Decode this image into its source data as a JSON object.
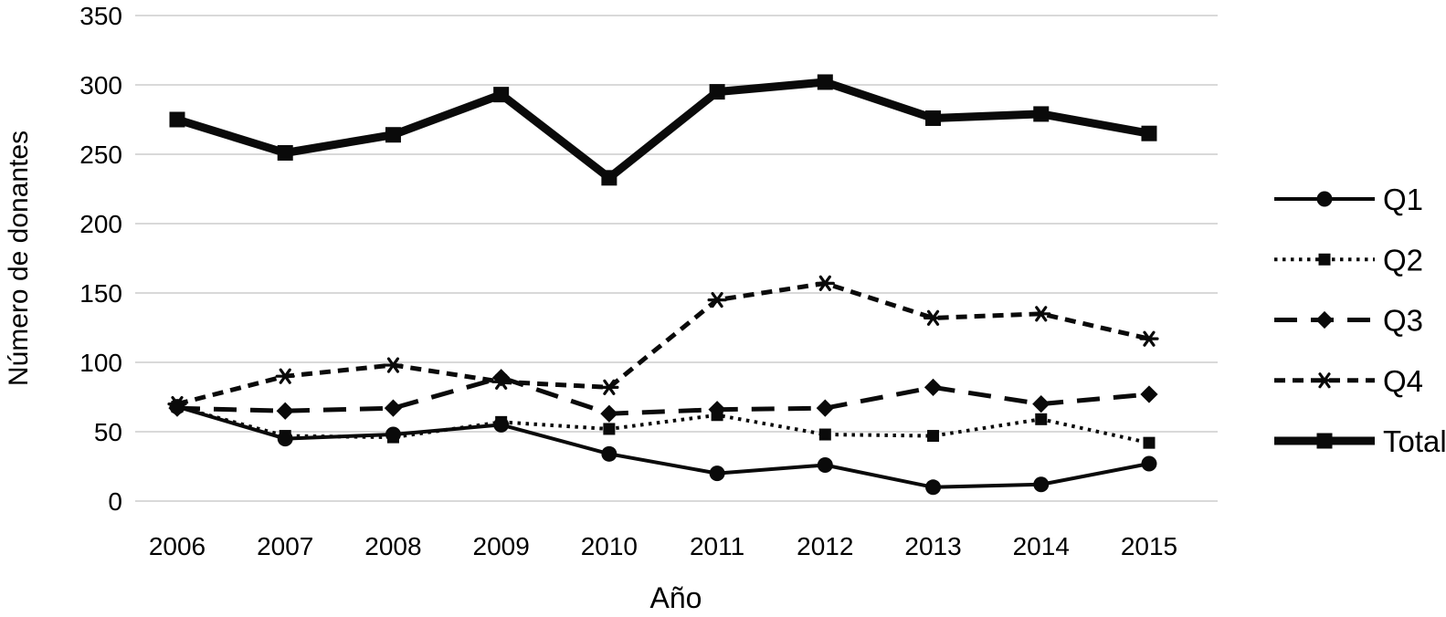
{
  "figure": {
    "background": "#ffffff"
  },
  "chart_data": {
    "type": "line",
    "title": "",
    "xlabel": "Año",
    "ylabel": "Número de donantes",
    "categories": [
      "2006",
      "2007",
      "2008",
      "2009",
      "2010",
      "2011",
      "2012",
      "2013",
      "2014",
      "2015"
    ],
    "ylim": [
      0,
      350
    ],
    "yticks": [
      350,
      300,
      250,
      200,
      150,
      100,
      50,
      0
    ],
    "grid": "horizontal",
    "legend_position": "right",
    "series": [
      {
        "name": "Q1",
        "values": [
          68,
          45,
          48,
          55,
          34,
          20,
          26,
          10,
          12,
          27
        ],
        "line_style": "solid",
        "line_weight": "thin",
        "marker": "circle"
      },
      {
        "name": "Q2",
        "values": [
          68,
          47,
          46,
          57,
          52,
          62,
          48,
          47,
          59,
          42
        ],
        "line_style": "dotted",
        "line_weight": "thin",
        "marker": "small-square"
      },
      {
        "name": "Q3",
        "values": [
          67,
          65,
          67,
          89,
          63,
          66,
          67,
          82,
          70,
          77
        ],
        "line_style": "long-dash",
        "line_weight": "medium",
        "marker": "diamond"
      },
      {
        "name": "Q4",
        "values": [
          70,
          90,
          98,
          86,
          82,
          145,
          157,
          132,
          135,
          117
        ],
        "line_style": "short-dash",
        "line_weight": "medium",
        "marker": "asterisk"
      },
      {
        "name": "Total",
        "values": [
          275,
          251,
          264,
          293,
          233,
          295,
          302,
          276,
          279,
          265
        ],
        "line_style": "solid",
        "line_weight": "thick",
        "marker": "square"
      }
    ],
    "colors": {
      "series": "#0a0a0a",
      "grid": "#d9d9d9",
      "text": "#000000",
      "background": "#ffffff"
    }
  }
}
